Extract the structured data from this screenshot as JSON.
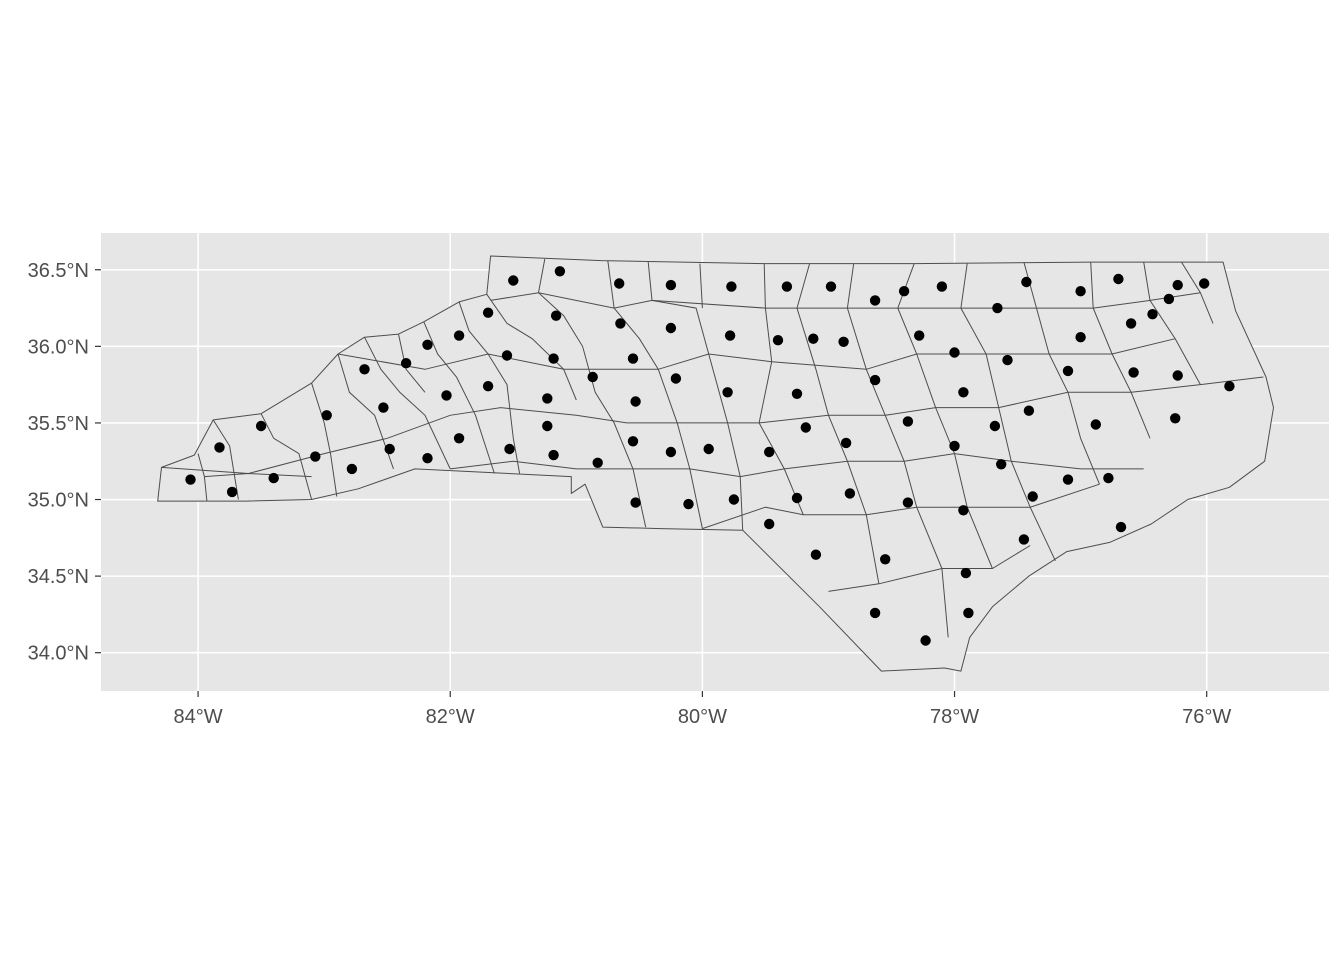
{
  "chart_data": {
    "type": "scatter",
    "title": "",
    "xlabel": "",
    "ylabel": "",
    "x_unit": "longitude (degrees)",
    "y_unit": "latitude (degrees)",
    "xlim": [
      -84.77,
      -75.03
    ],
    "ylim": [
      33.75,
      36.74
    ],
    "x_ticks": [
      {
        "value": -84,
        "label": "84°W"
      },
      {
        "value": -82,
        "label": "82°W"
      },
      {
        "value": -80,
        "label": "80°W"
      },
      {
        "value": -78,
        "label": "78°W"
      },
      {
        "value": -76,
        "label": "76°W"
      }
    ],
    "y_ticks": [
      {
        "value": 34.0,
        "label": "34.0°N"
      },
      {
        "value": 34.5,
        "label": "34.5°N"
      },
      {
        "value": 35.0,
        "label": "35.0°N"
      },
      {
        "value": 35.5,
        "label": "35.5°N"
      },
      {
        "value": 36.0,
        "label": "36.0°N"
      },
      {
        "value": 36.5,
        "label": "36.5°N"
      }
    ],
    "grid": true,
    "panel_background": "#e6e6e6",
    "county_fill": "#e6e6e6",
    "county_border": "#4d4d4d",
    "point_color": "#000000",
    "state_outline": [
      [
        -84.32,
        34.99
      ],
      [
        -84.29,
        35.21
      ],
      [
        -84.03,
        35.29
      ],
      [
        -83.88,
        35.52
      ],
      [
        -83.5,
        35.56
      ],
      [
        -83.1,
        35.76
      ],
      [
        -82.89,
        35.95
      ],
      [
        -82.68,
        36.06
      ],
      [
        -82.41,
        36.08
      ],
      [
        -82.21,
        36.16
      ],
      [
        -81.93,
        36.29
      ],
      [
        -81.71,
        36.34
      ],
      [
        -81.68,
        36.59
      ],
      [
        -80.8,
        36.56
      ],
      [
        -79.51,
        36.54
      ],
      [
        -78.32,
        36.54
      ],
      [
        -76.92,
        36.55
      ],
      [
        -76.0,
        36.55
      ],
      [
        -75.87,
        36.55
      ],
      [
        -75.77,
        36.23
      ],
      [
        -75.53,
        35.8
      ],
      [
        -75.47,
        35.6
      ],
      [
        -75.54,
        35.25
      ],
      [
        -75.82,
        35.08
      ],
      [
        -76.15,
        35.0
      ],
      [
        -76.44,
        34.84
      ],
      [
        -76.77,
        34.72
      ],
      [
        -77.11,
        34.66
      ],
      [
        -77.41,
        34.5
      ],
      [
        -77.7,
        34.3
      ],
      [
        -77.88,
        34.1
      ],
      [
        -77.95,
        33.88
      ],
      [
        -78.08,
        33.9
      ],
      [
        -78.58,
        33.88
      ],
      [
        -79.07,
        34.3
      ],
      [
        -79.68,
        34.8
      ],
      [
        -80.33,
        34.81
      ],
      [
        -80.79,
        34.82
      ],
      [
        -80.93,
        35.1
      ],
      [
        -81.04,
        35.04
      ],
      [
        -81.04,
        35.15
      ],
      [
        -82.28,
        35.2
      ],
      [
        -82.73,
        35.07
      ],
      [
        -83.1,
        35.0
      ],
      [
        -83.62,
        34.99
      ],
      [
        -84.32,
        34.99
      ]
    ],
    "county_lines": [
      [
        [
          -84.0,
          35.3
        ],
        [
          -83.95,
          35.15
        ],
        [
          -83.93,
          34.99
        ]
      ],
      [
        [
          -83.88,
          35.52
        ],
        [
          -83.75,
          35.35
        ],
        [
          -83.68,
          35.0
        ]
      ],
      [
        [
          -83.95,
          35.15
        ],
        [
          -83.6,
          35.17
        ],
        [
          -83.1,
          35.15
        ]
      ],
      [
        [
          -83.5,
          35.56
        ],
        [
          -83.4,
          35.4
        ],
        [
          -83.2,
          35.3
        ],
        [
          -83.1,
          35.0
        ]
      ],
      [
        [
          -83.1,
          35.76
        ],
        [
          -83.0,
          35.5
        ],
        [
          -82.95,
          35.3
        ],
        [
          -82.9,
          35.02
        ]
      ],
      [
        [
          -82.89,
          35.95
        ],
        [
          -82.8,
          35.7
        ],
        [
          -82.6,
          35.55
        ],
        [
          -82.45,
          35.2
        ]
      ],
      [
        [
          -82.68,
          36.06
        ],
        [
          -82.55,
          35.85
        ],
        [
          -82.4,
          35.7
        ],
        [
          -82.2,
          35.55
        ],
        [
          -82.0,
          35.2
        ]
      ],
      [
        [
          -82.41,
          36.08
        ],
        [
          -82.35,
          35.85
        ],
        [
          -82.2,
          35.7
        ]
      ],
      [
        [
          -82.21,
          36.16
        ],
        [
          -82.1,
          35.95
        ],
        [
          -81.95,
          35.8
        ],
        [
          -81.8,
          35.55
        ],
        [
          -81.65,
          35.17
        ]
      ],
      [
        [
          -81.93,
          36.29
        ],
        [
          -81.85,
          36.1
        ],
        [
          -81.7,
          35.95
        ],
        [
          -81.55,
          35.75
        ],
        [
          -81.5,
          35.4
        ],
        [
          -81.45,
          35.17
        ]
      ],
      [
        [
          -81.71,
          36.34
        ],
        [
          -81.55,
          36.15
        ],
        [
          -81.35,
          36.05
        ],
        [
          -81.1,
          35.85
        ],
        [
          -81.0,
          35.65
        ]
      ],
      [
        [
          -81.25,
          36.57
        ],
        [
          -81.3,
          36.35
        ],
        [
          -81.1,
          36.2
        ],
        [
          -80.95,
          36.0
        ],
        [
          -80.85,
          35.7
        ],
        [
          -80.7,
          35.5
        ],
        [
          -80.55,
          35.2
        ],
        [
          -80.45,
          34.82
        ]
      ],
      [
        [
          -80.75,
          36.56
        ],
        [
          -80.7,
          36.25
        ],
        [
          -80.5,
          36.05
        ],
        [
          -80.35,
          35.85
        ],
        [
          -80.2,
          35.5
        ],
        [
          -80.1,
          35.2
        ],
        [
          -80.0,
          34.81
        ]
      ],
      [
        [
          -80.43,
          36.55
        ],
        [
          -80.4,
          36.3
        ],
        [
          -80.05,
          36.25
        ],
        [
          -79.95,
          35.95
        ],
        [
          -79.8,
          35.5
        ],
        [
          -79.7,
          35.15
        ],
        [
          -79.68,
          34.8
        ]
      ],
      [
        [
          -80.02,
          36.54
        ],
        [
          -80.0,
          36.25
        ]
      ],
      [
        [
          -79.51,
          36.54
        ],
        [
          -79.5,
          36.25
        ],
        [
          -79.45,
          35.9
        ],
        [
          -79.55,
          35.5
        ],
        [
          -79.35,
          35.2
        ],
        [
          -79.2,
          34.9
        ]
      ],
      [
        [
          -79.15,
          36.54
        ],
        [
          -79.25,
          36.25
        ],
        [
          -79.1,
          35.85
        ],
        [
          -79.0,
          35.55
        ],
        [
          -78.85,
          35.25
        ],
        [
          -78.7,
          34.9
        ],
        [
          -78.6,
          34.45
        ]
      ],
      [
        [
          -78.8,
          36.54
        ],
        [
          -78.85,
          36.25
        ],
        [
          -78.7,
          35.85
        ],
        [
          -78.55,
          35.55
        ],
        [
          -78.4,
          35.25
        ],
        [
          -78.3,
          34.95
        ],
        [
          -78.1,
          34.55
        ],
        [
          -78.05,
          34.1
        ]
      ],
      [
        [
          -78.32,
          36.54
        ],
        [
          -78.45,
          36.25
        ],
        [
          -78.3,
          35.95
        ],
        [
          -78.15,
          35.6
        ],
        [
          -78.0,
          35.3
        ],
        [
          -77.9,
          34.95
        ],
        [
          -77.7,
          34.55
        ]
      ],
      [
        [
          -77.9,
          36.54
        ],
        [
          -77.95,
          36.25
        ],
        [
          -77.75,
          35.95
        ],
        [
          -77.65,
          35.6
        ],
        [
          -77.55,
          35.25
        ],
        [
          -77.4,
          34.95
        ],
        [
          -77.2,
          34.6
        ]
      ],
      [
        [
          -77.45,
          36.55
        ],
        [
          -77.35,
          36.25
        ],
        [
          -77.25,
          35.95
        ],
        [
          -77.1,
          35.7
        ],
        [
          -77.0,
          35.4
        ],
        [
          -76.85,
          35.1
        ]
      ],
      [
        [
          -76.92,
          36.55
        ],
        [
          -76.9,
          36.25
        ],
        [
          -76.75,
          35.95
        ],
        [
          -76.6,
          35.7
        ],
        [
          -76.45,
          35.4
        ]
      ],
      [
        [
          -76.5,
          36.55
        ],
        [
          -76.45,
          36.3
        ],
        [
          -76.25,
          36.05
        ],
        [
          -76.05,
          35.75
        ]
      ],
      [
        [
          -76.2,
          36.55
        ],
        [
          -76.05,
          36.35
        ],
        [
          -75.95,
          36.15
        ]
      ],
      [
        [
          -84.29,
          35.21
        ],
        [
          -83.6,
          35.17
        ],
        [
          -83.0,
          35.3
        ],
        [
          -82.5,
          35.4
        ],
        [
          -82.0,
          35.55
        ],
        [
          -81.6,
          35.6
        ],
        [
          -81.0,
          35.55
        ],
        [
          -80.6,
          35.5
        ],
        [
          -80.1,
          35.5
        ],
        [
          -79.55,
          35.5
        ],
        [
          -79.0,
          35.55
        ],
        [
          -78.55,
          35.55
        ],
        [
          -78.15,
          35.6
        ],
        [
          -77.65,
          35.6
        ],
        [
          -77.1,
          35.7
        ],
        [
          -76.6,
          35.7
        ],
        [
          -76.05,
          35.75
        ],
        [
          -75.55,
          35.8
        ]
      ],
      [
        [
          -82.89,
          35.95
        ],
        [
          -82.2,
          35.85
        ],
        [
          -81.7,
          35.95
        ],
        [
          -81.1,
          35.85
        ],
        [
          -80.35,
          35.85
        ],
        [
          -79.95,
          35.95
        ],
        [
          -79.45,
          35.9
        ],
        [
          -78.7,
          35.85
        ],
        [
          -78.3,
          35.95
        ],
        [
          -77.75,
          35.95
        ],
        [
          -77.25,
          35.95
        ],
        [
          -76.75,
          35.95
        ],
        [
          -76.25,
          36.05
        ]
      ],
      [
        [
          -81.68,
          36.3
        ],
        [
          -81.3,
          36.35
        ],
        [
          -80.7,
          36.25
        ],
        [
          -80.4,
          36.3
        ],
        [
          -79.5,
          36.25
        ],
        [
          -78.85,
          36.25
        ],
        [
          -78.45,
          36.25
        ],
        [
          -77.95,
          36.25
        ],
        [
          -77.35,
          36.25
        ],
        [
          -76.9,
          36.25
        ],
        [
          -76.45,
          36.3
        ],
        [
          -76.05,
          36.35
        ]
      ],
      [
        [
          -82.0,
          35.2
        ],
        [
          -81.5,
          35.25
        ],
        [
          -81.0,
          35.2
        ],
        [
          -80.55,
          35.2
        ],
        [
          -80.1,
          35.2
        ],
        [
          -79.7,
          35.15
        ],
        [
          -79.35,
          35.2
        ],
        [
          -78.85,
          35.25
        ],
        [
          -78.4,
          35.25
        ],
        [
          -78.0,
          35.3
        ],
        [
          -77.55,
          35.25
        ],
        [
          -77.0,
          35.2
        ],
        [
          -76.5,
          35.2
        ]
      ],
      [
        [
          -80.0,
          34.81
        ],
        [
          -79.5,
          34.95
        ],
        [
          -79.2,
          34.9
        ],
        [
          -78.7,
          34.9
        ],
        [
          -78.3,
          34.95
        ],
        [
          -77.9,
          34.95
        ],
        [
          -77.4,
          34.95
        ],
        [
          -76.85,
          35.1
        ]
      ],
      [
        [
          -79.0,
          34.4
        ],
        [
          -78.6,
          34.45
        ],
        [
          -78.1,
          34.55
        ],
        [
          -77.7,
          34.55
        ],
        [
          -77.4,
          34.7
        ]
      ]
    ],
    "points": [
      {
        "x": -84.06,
        "y": 35.13
      },
      {
        "x": -83.83,
        "y": 35.34
      },
      {
        "x": -83.73,
        "y": 35.05
      },
      {
        "x": -83.5,
        "y": 35.48
      },
      {
        "x": -83.4,
        "y": 35.14
      },
      {
        "x": -83.07,
        "y": 35.28
      },
      {
        "x": -82.98,
        "y": 35.55
      },
      {
        "x": -82.78,
        "y": 35.2
      },
      {
        "x": -82.68,
        "y": 35.85
      },
      {
        "x": -82.53,
        "y": 35.6
      },
      {
        "x": -82.48,
        "y": 35.33
      },
      {
        "x": -82.35,
        "y": 35.89
      },
      {
        "x": -82.18,
        "y": 36.01
      },
      {
        "x": -82.18,
        "y": 35.27
      },
      {
        "x": -82.03,
        "y": 35.68
      },
      {
        "x": -81.93,
        "y": 36.07
      },
      {
        "x": -81.93,
        "y": 35.4
      },
      {
        "x": -81.7,
        "y": 36.22
      },
      {
        "x": -81.7,
        "y": 35.74
      },
      {
        "x": -81.55,
        "y": 35.94
      },
      {
        "x": -81.53,
        "y": 35.33
      },
      {
        "x": -81.5,
        "y": 36.43
      },
      {
        "x": -81.23,
        "y": 35.66
      },
      {
        "x": -81.23,
        "y": 35.48
      },
      {
        "x": -81.18,
        "y": 35.92
      },
      {
        "x": -81.18,
        "y": 35.29
      },
      {
        "x": -81.16,
        "y": 36.2
      },
      {
        "x": -81.13,
        "y": 36.49
      },
      {
        "x": -80.87,
        "y": 35.8
      },
      {
        "x": -80.83,
        "y": 35.24
      },
      {
        "x": -80.66,
        "y": 36.41
      },
      {
        "x": -80.65,
        "y": 36.15
      },
      {
        "x": -80.55,
        "y": 35.92
      },
      {
        "x": -80.55,
        "y": 35.38
      },
      {
        "x": -80.53,
        "y": 35.64
      },
      {
        "x": -80.53,
        "y": 34.98
      },
      {
        "x": -80.25,
        "y": 36.4
      },
      {
        "x": -80.25,
        "y": 36.12
      },
      {
        "x": -80.25,
        "y": 35.31
      },
      {
        "x": -80.21,
        "y": 35.79
      },
      {
        "x": -80.11,
        "y": 34.97
      },
      {
        "x": -79.95,
        "y": 35.33
      },
      {
        "x": -79.8,
        "y": 35.7
      },
      {
        "x": -79.78,
        "y": 36.07
      },
      {
        "x": -79.77,
        "y": 36.39
      },
      {
        "x": -79.75,
        "y": 35.0
      },
      {
        "x": -79.47,
        "y": 35.31
      },
      {
        "x": -79.47,
        "y": 34.84
      },
      {
        "x": -79.4,
        "y": 36.04
      },
      {
        "x": -79.33,
        "y": 36.39
      },
      {
        "x": -79.25,
        "y": 35.69
      },
      {
        "x": -79.25,
        "y": 35.01
      },
      {
        "x": -79.18,
        "y": 35.47
      },
      {
        "x": -79.12,
        "y": 36.05
      },
      {
        "x": -79.1,
        "y": 34.64
      },
      {
        "x": -78.98,
        "y": 36.39
      },
      {
        "x": -78.88,
        "y": 36.03
      },
      {
        "x": -78.86,
        "y": 35.37
      },
      {
        "x": -78.83,
        "y": 35.04
      },
      {
        "x": -78.63,
        "y": 36.3
      },
      {
        "x": -78.63,
        "y": 35.78
      },
      {
        "x": -78.63,
        "y": 34.26
      },
      {
        "x": -78.55,
        "y": 34.61
      },
      {
        "x": -78.4,
        "y": 36.36
      },
      {
        "x": -78.37,
        "y": 35.51
      },
      {
        "x": -78.37,
        "y": 34.98
      },
      {
        "x": -78.28,
        "y": 36.07
      },
      {
        "x": -78.23,
        "y": 34.08
      },
      {
        "x": -78.1,
        "y": 36.39
      },
      {
        "x": -78.0,
        "y": 35.96
      },
      {
        "x": -78.0,
        "y": 35.35
      },
      {
        "x": -77.93,
        "y": 35.7
      },
      {
        "x": -77.93,
        "y": 34.93
      },
      {
        "x": -77.91,
        "y": 34.52
      },
      {
        "x": -77.89,
        "y": 34.26
      },
      {
        "x": -77.66,
        "y": 36.25
      },
      {
        "x": -77.68,
        "y": 35.48
      },
      {
        "x": -77.63,
        "y": 35.23
      },
      {
        "x": -77.58,
        "y": 35.91
      },
      {
        "x": -77.43,
        "y": 36.42
      },
      {
        "x": -77.41,
        "y": 35.58
      },
      {
        "x": -77.38,
        "y": 35.02
      },
      {
        "x": -77.45,
        "y": 34.74
      },
      {
        "x": -77.1,
        "y": 35.84
      },
      {
        "x": -77.1,
        "y": 35.13
      },
      {
        "x": -77.0,
        "y": 36.36
      },
      {
        "x": -77.0,
        "y": 36.06
      },
      {
        "x": -76.88,
        "y": 35.49
      },
      {
        "x": -76.78,
        "y": 35.14
      },
      {
        "x": -76.7,
        "y": 36.44
      },
      {
        "x": -76.68,
        "y": 34.82
      },
      {
        "x": -76.6,
        "y": 36.15
      },
      {
        "x": -76.58,
        "y": 35.83
      },
      {
        "x": -76.43,
        "y": 36.21
      },
      {
        "x": -76.3,
        "y": 36.31
      },
      {
        "x": -76.23,
        "y": 36.4
      },
      {
        "x": -76.23,
        "y": 35.81
      },
      {
        "x": -76.25,
        "y": 35.53
      },
      {
        "x": -76.02,
        "y": 36.41
      },
      {
        "x": -75.82,
        "y": 35.74
      }
    ]
  }
}
